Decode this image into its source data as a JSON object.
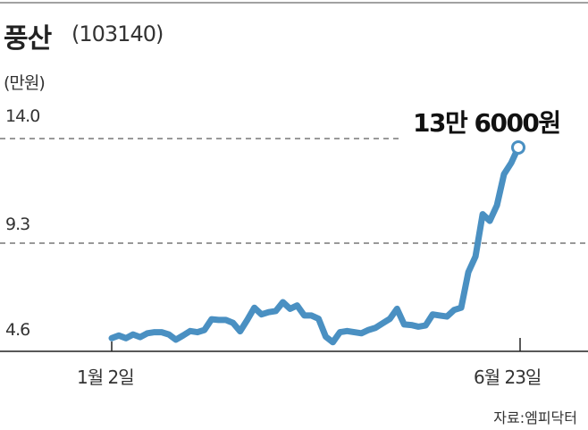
{
  "header": {
    "title": "풍산",
    "code": "(103140)",
    "unit": "(만원)"
  },
  "annotation": "13만 6000원",
  "source": "자료:엠피닥터",
  "colors": {
    "line": "#4a90c2",
    "grid": "#333333"
  },
  "chart_data": {
    "type": "line",
    "title": "풍산(103140)",
    "ylabel": "(만원)",
    "yticks": [
      "14.0",
      "9.3",
      "4.6"
    ],
    "ylim": [
      4.6,
      14.0
    ],
    "xticks": [
      "1월 2일",
      "6월 23일"
    ],
    "grid": "dashed horizontal at 14.0 and 9.3",
    "last_value_label": "13만 6000원",
    "series": [
      {
        "values": [
          5.03,
          5.15,
          5.03,
          5.2,
          5.08,
          5.25,
          5.3,
          5.3,
          5.2,
          4.96,
          5.15,
          5.35,
          5.3,
          5.4,
          5.88,
          5.85,
          5.85,
          5.72,
          5.34,
          5.85,
          6.4,
          6.1,
          6.2,
          6.25,
          6.65,
          6.35,
          6.5,
          6.05,
          6.05,
          5.9,
          5.1,
          4.85,
          5.3,
          5.35,
          5.3,
          5.25,
          5.4,
          5.5,
          5.7,
          5.9,
          6.35,
          5.65,
          5.62,
          5.55,
          5.6,
          6.1,
          6.05,
          6.0,
          6.3,
          6.4,
          8.0,
          8.7,
          10.6,
          10.3,
          11.0,
          12.4,
          12.9,
          13.6
        ]
      }
    ]
  }
}
